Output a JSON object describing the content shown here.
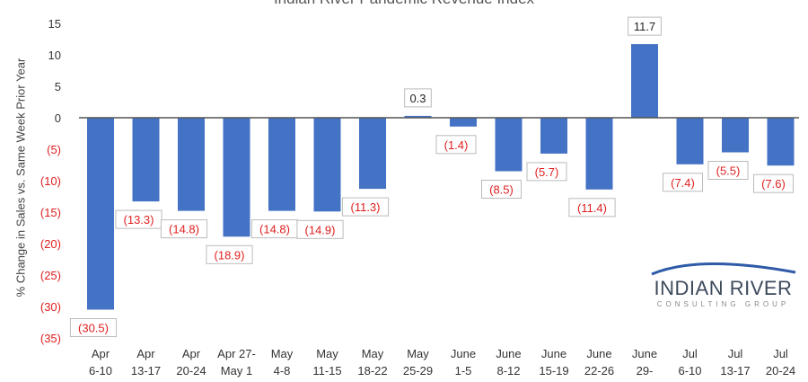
{
  "chart_data": {
    "type": "bar",
    "title": "Indian River Pandemic Revenue Index",
    "xlabel": "",
    "ylabel": "% Change in Sales vs. Same Week Prior Year",
    "ylim": [
      -35,
      15
    ],
    "yticks": [
      15,
      10,
      5,
      0,
      -5,
      -10,
      -15,
      -20,
      -25,
      -30,
      -35
    ],
    "ytick_labels": [
      "15",
      "10",
      "5",
      "0",
      "(5)",
      "(10)",
      "(15)",
      "(20)",
      "(25)",
      "(30)",
      "(35)"
    ],
    "categories": [
      [
        "Apr",
        "6-10"
      ],
      [
        "Apr",
        "13-17"
      ],
      [
        "Apr",
        "20-24"
      ],
      [
        "Apr 27-",
        "May 1"
      ],
      [
        "May",
        "4-8"
      ],
      [
        "May",
        "11-15"
      ],
      [
        "May",
        "18-22"
      ],
      [
        "May",
        "25-29"
      ],
      [
        "June",
        "1-5"
      ],
      [
        "June",
        "8-12"
      ],
      [
        "June",
        "15-19"
      ],
      [
        "June",
        "22-26"
      ],
      [
        "June",
        "29-"
      ],
      [
        "Jul",
        "6-10"
      ],
      [
        "Jul",
        "13-17"
      ],
      [
        "Jul",
        "20-24"
      ]
    ],
    "values": [
      -30.5,
      -13.3,
      -14.8,
      -18.9,
      -14.8,
      -14.9,
      -11.3,
      0.3,
      -1.4,
      -8.5,
      -5.7,
      -11.4,
      11.7,
      -7.4,
      -5.5,
      -7.6
    ],
    "data_labels": [
      "(30.5)",
      "(13.3)",
      "(14.8)",
      "(18.9)",
      "(14.8)",
      "(14.9)",
      "(11.3)",
      "0.3",
      "(1.4)",
      "(8.5)",
      "(5.7)",
      "(11.4)",
      "11.7",
      "(7.4)",
      "(5.5)",
      "(7.6)"
    ],
    "grid": false,
    "colors": {
      "bar": "#4472c4",
      "negative_label": "#e02020",
      "positive_label": "#222222"
    }
  },
  "logo": {
    "main": "INDIAN RIVER",
    "sub": "CONSULTING GROUP"
  }
}
